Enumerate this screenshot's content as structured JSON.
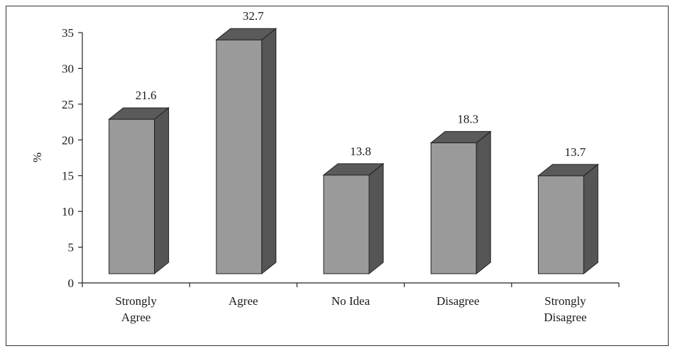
{
  "chart_data": {
    "type": "bar",
    "style": "3d",
    "categories": [
      [
        "Strongly",
        "Agree"
      ],
      [
        "Agree"
      ],
      [
        "No Idea"
      ],
      [
        "Disagree"
      ],
      [
        "Strongly",
        "Disagree"
      ]
    ],
    "values": [
      21.6,
      32.7,
      13.8,
      18.3,
      13.7
    ],
    "data_labels": [
      "21.6",
      "32.7",
      "13.8",
      "18.3",
      "13.7"
    ],
    "ylabel": "%",
    "xlabel": "",
    "title": "",
    "ylim": [
      0,
      35
    ],
    "yticks": [
      0,
      5,
      10,
      15,
      20,
      25,
      30,
      35
    ],
    "grid": false,
    "colors": {
      "front": "#9a9a9a",
      "side": "#555555",
      "top": "#5a5a5a",
      "edge": "#222222"
    }
  }
}
